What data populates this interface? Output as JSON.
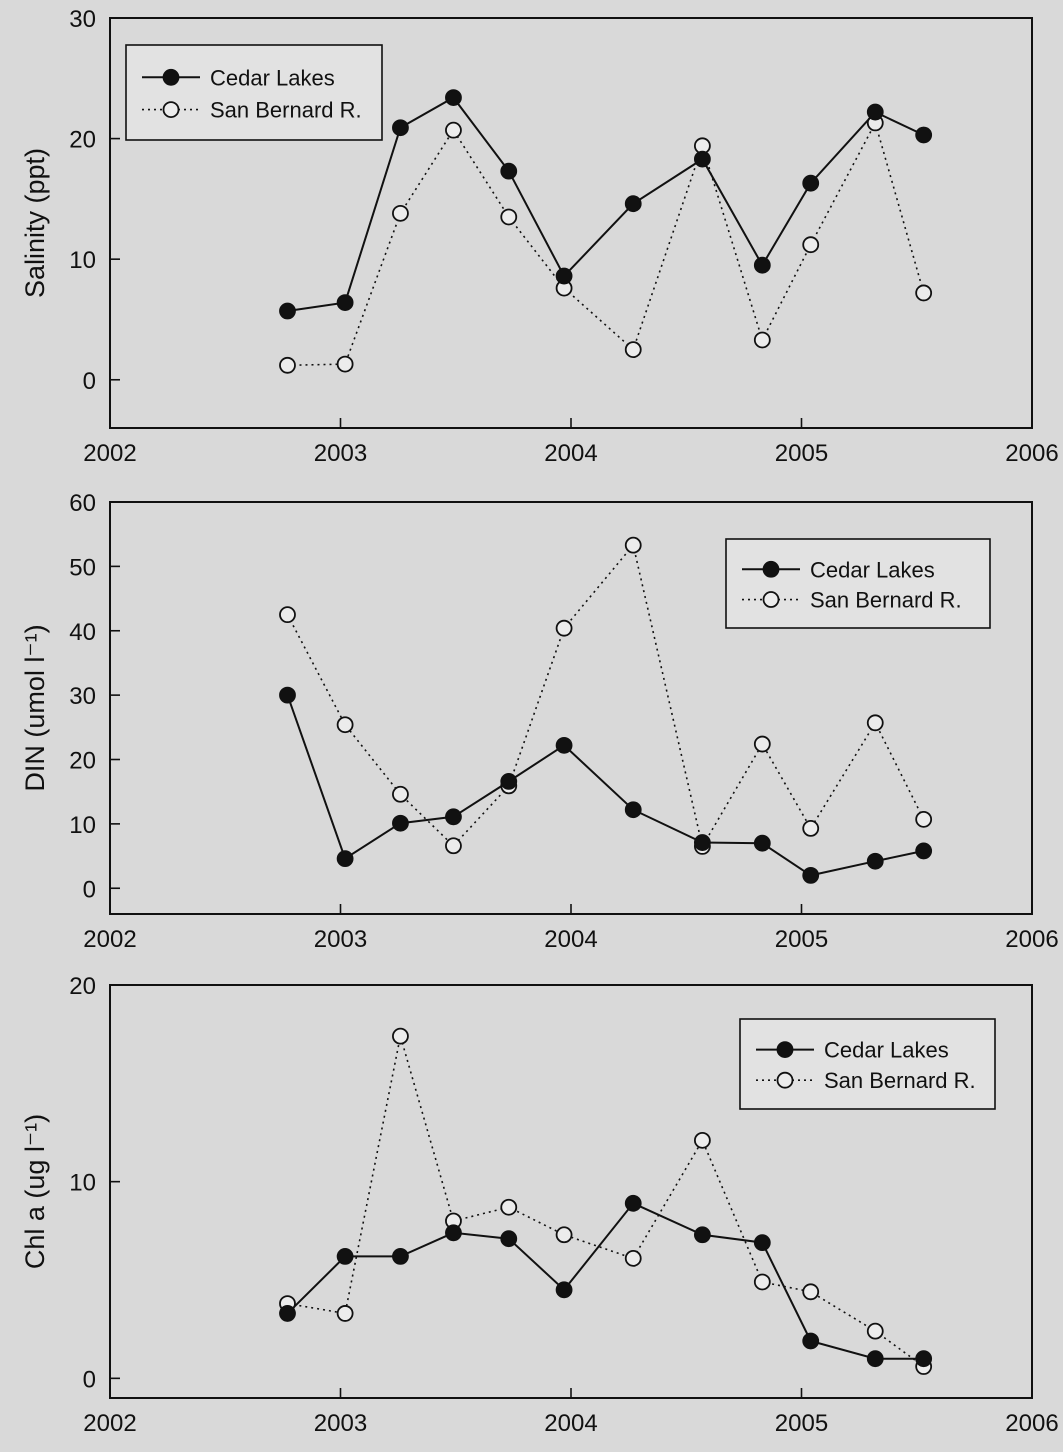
{
  "chart_data": [
    {
      "type": "line",
      "ylabel": "Salinity (ppt)",
      "xlabel": "",
      "xlim": [
        2002,
        2006
      ],
      "ylim": [
        -4,
        30
      ],
      "yticks": [
        0,
        10,
        20,
        30
      ],
      "xticks": [
        "2002",
        "2003",
        "2004",
        "2005",
        "2006"
      ],
      "legend_position": "top-left",
      "series": [
        {
          "name": "Cedar Lakes",
          "style": "solid-filled",
          "x": [
            2002.77,
            2003.02,
            2003.26,
            2003.49,
            2003.73,
            2003.97,
            2004.27,
            2004.57,
            2004.83,
            2005.04,
            2005.32,
            2005.53
          ],
          "y": [
            5.7,
            6.4,
            20.9,
            23.4,
            17.3,
            8.6,
            14.6,
            18.3,
            9.5,
            16.3,
            22.2,
            20.3
          ]
        },
        {
          "name": "San Bernard R.",
          "style": "dotted-open",
          "x": [
            2002.77,
            2003.02,
            2003.26,
            2003.49,
            2003.73,
            2003.97,
            2004.27,
            2004.57,
            2004.83,
            2005.04,
            2005.32,
            2005.53
          ],
          "y": [
            1.2,
            1.3,
            13.8,
            20.7,
            13.5,
            7.6,
            2.5,
            19.4,
            3.3,
            11.2,
            21.3,
            7.2
          ]
        }
      ]
    },
    {
      "type": "line",
      "ylabel": "DIN (umol l⁻¹)",
      "xlabel": "",
      "xlim": [
        2002,
        2006
      ],
      "ylim": [
        -4,
        60
      ],
      "yticks": [
        0,
        10,
        20,
        30,
        40,
        50,
        60
      ],
      "xticks": [
        "2002",
        "2003",
        "2004",
        "2005",
        "2006"
      ],
      "legend_position": "top-right",
      "series": [
        {
          "name": "Cedar Lakes",
          "style": "solid-filled",
          "x": [
            2002.77,
            2003.02,
            2003.26,
            2003.49,
            2003.73,
            2003.97,
            2004.27,
            2004.57,
            2004.83,
            2005.04,
            2005.32,
            2005.53
          ],
          "y": [
            30.0,
            4.6,
            10.1,
            11.1,
            16.6,
            22.2,
            12.2,
            7.1,
            7.0,
            2.0,
            4.2,
            5.8
          ]
        },
        {
          "name": "San Bernard R.",
          "style": "dotted-open",
          "x": [
            2002.77,
            2003.02,
            2003.26,
            2003.49,
            2003.73,
            2003.97,
            2004.27,
            2004.57,
            2004.83,
            2005.04,
            2005.32,
            2005.53
          ],
          "y": [
            42.5,
            25.4,
            14.6,
            6.6,
            15.9,
            40.4,
            53.3,
            6.5,
            22.4,
            9.3,
            25.7,
            10.7
          ]
        }
      ]
    },
    {
      "type": "line",
      "ylabel": "Chl a (ug l⁻¹)",
      "xlabel": "",
      "xlim": [
        2002,
        2006
      ],
      "ylim": [
        -1,
        20
      ],
      "yticks": [
        0,
        10,
        20
      ],
      "xticks": [
        "2002",
        "2003",
        "2004",
        "2005",
        "2006"
      ],
      "legend_position": "top-right",
      "series": [
        {
          "name": "Cedar Lakes",
          "style": "solid-filled",
          "x": [
            2002.77,
            2003.02,
            2003.26,
            2003.49,
            2003.73,
            2003.97,
            2004.27,
            2004.57,
            2004.83,
            2005.04,
            2005.32,
            2005.53
          ],
          "y": [
            3.3,
            6.2,
            6.2,
            7.4,
            7.1,
            4.5,
            8.9,
            7.3,
            6.9,
            1.9,
            1.0,
            1.0
          ]
        },
        {
          "name": "San Bernard R.",
          "style": "dotted-open",
          "x": [
            2002.77,
            2003.02,
            2003.26,
            2003.49,
            2003.73,
            2003.97,
            2004.27,
            2004.57,
            2004.83,
            2005.04,
            2005.32,
            2005.53
          ],
          "y": [
            3.8,
            3.3,
            17.4,
            8.0,
            8.7,
            7.3,
            6.1,
            12.1,
            4.9,
            4.4,
            2.4,
            0.6
          ]
        }
      ]
    }
  ]
}
